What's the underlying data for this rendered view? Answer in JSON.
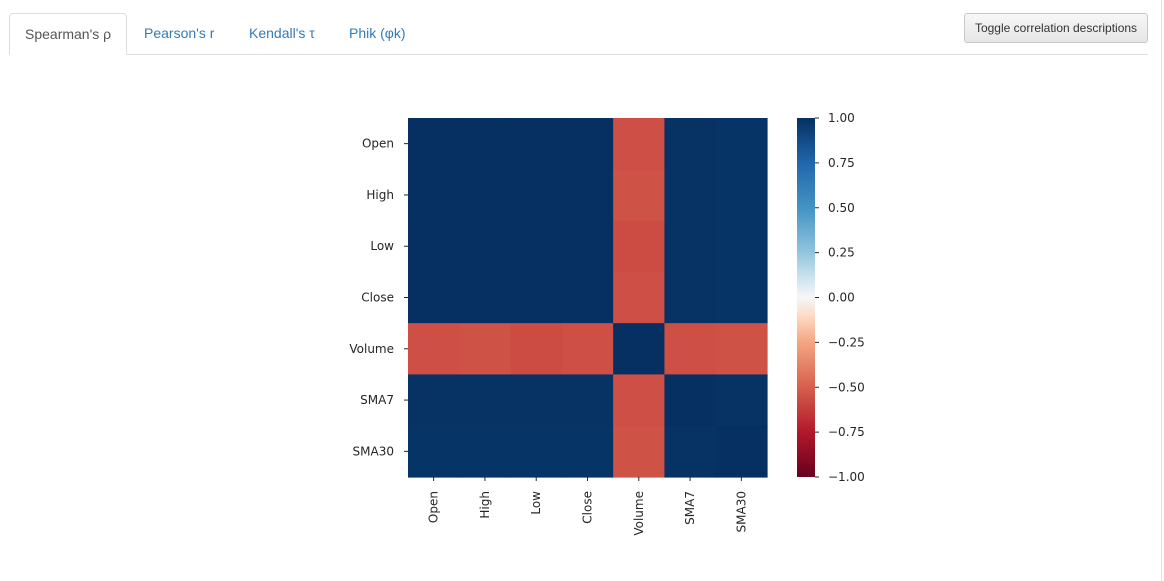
{
  "tabs": [
    {
      "label": "Spearman's ρ",
      "active": true
    },
    {
      "label": "Pearson's r",
      "active": false
    },
    {
      "label": "Kendall's τ",
      "active": false
    },
    {
      "label": "Phik (φk)",
      "active": false
    }
  ],
  "toggle_button": {
    "label": "Toggle correlation descriptions"
  },
  "colors": {
    "tab_link": "#337ab7",
    "tab_active_text": "#555555"
  },
  "chart_data": {
    "type": "heatmap",
    "title": "",
    "xlabel": "",
    "ylabel": "",
    "variables": [
      "Open",
      "High",
      "Low",
      "Close",
      "Volume",
      "SMA7",
      "SMA30"
    ],
    "matrix": [
      [
        1.0,
        1.0,
        1.0,
        1.0,
        -0.56,
        0.99,
        0.98
      ],
      [
        1.0,
        1.0,
        1.0,
        1.0,
        -0.55,
        0.99,
        0.98
      ],
      [
        1.0,
        1.0,
        1.0,
        1.0,
        -0.57,
        0.99,
        0.98
      ],
      [
        1.0,
        1.0,
        1.0,
        1.0,
        -0.56,
        0.99,
        0.98
      ],
      [
        -0.56,
        -0.55,
        -0.57,
        -0.56,
        1.0,
        -0.56,
        -0.55
      ],
      [
        0.99,
        0.99,
        0.99,
        0.99,
        -0.56,
        1.0,
        0.99
      ],
      [
        0.98,
        0.98,
        0.98,
        0.98,
        -0.55,
        0.99,
        1.0
      ]
    ],
    "colorbar": {
      "range": [
        -1,
        1
      ],
      "ticks": [
        1.0,
        0.75,
        0.5,
        0.25,
        0.0,
        -0.25,
        -0.5,
        -0.75,
        -1.0
      ],
      "tick_labels": [
        "1.00",
        "0.75",
        "0.50",
        "0.25",
        "0.00",
        "−0.25",
        "−0.50",
        "−0.75",
        "−1.00"
      ],
      "colormap": "RdBu",
      "colormap_stops": [
        {
          "v": -1.0,
          "color": "#67001f"
        },
        {
          "v": -0.75,
          "color": "#b2182b"
        },
        {
          "v": -0.5,
          "color": "#d6604d"
        },
        {
          "v": -0.25,
          "color": "#f4a582"
        },
        {
          "v": -0.1,
          "color": "#fddbc7"
        },
        {
          "v": 0.0,
          "color": "#f7f7f7"
        },
        {
          "v": 0.1,
          "color": "#d1e5f0"
        },
        {
          "v": 0.25,
          "color": "#92c5de"
        },
        {
          "v": 0.5,
          "color": "#4393c3"
        },
        {
          "v": 0.75,
          "color": "#2166ac"
        },
        {
          "v": 1.0,
          "color": "#053061"
        }
      ]
    }
  }
}
